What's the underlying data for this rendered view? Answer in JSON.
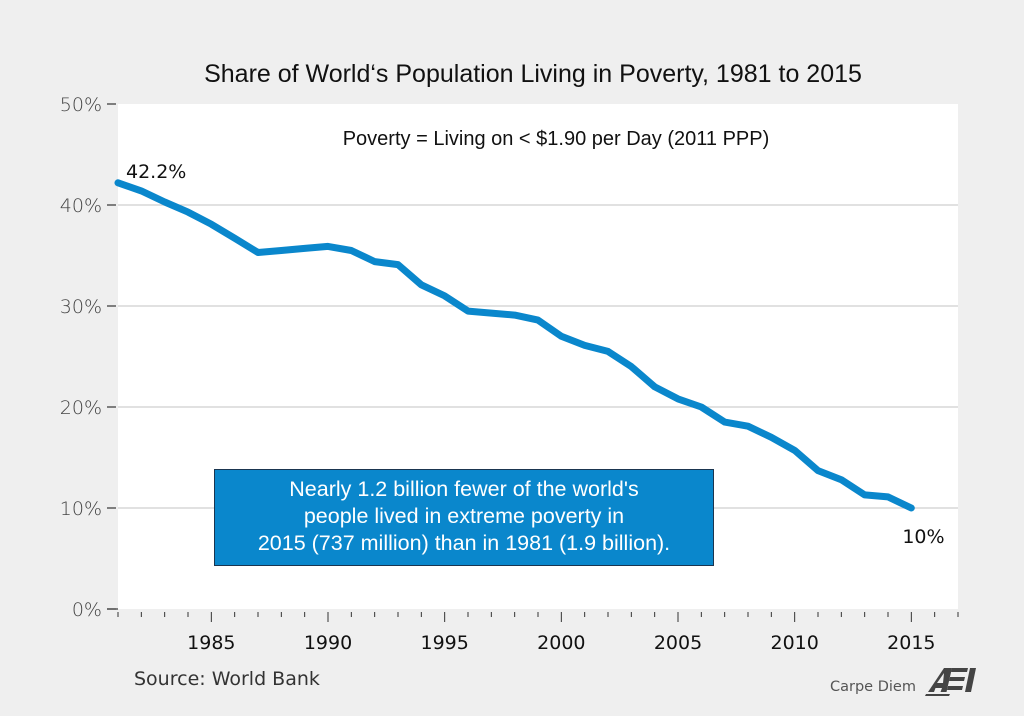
{
  "chart_data": {
    "type": "line",
    "title": "Share of World‘s Population Living in Poverty, 1981 to 2015",
    "subtitle": "Poverty = Living on < $1.90 per Day (2011 PPP)",
    "xlabel": "",
    "ylabel": "",
    "xlim": [
      1981,
      2017
    ],
    "ylim": [
      0,
      50
    ],
    "grid": "horizontal",
    "x_ticks": [
      1985,
      1990,
      1995,
      2000,
      2005,
      2010,
      2015
    ],
    "x_tick_labels": [
      "1985",
      "1990",
      "1995",
      "2000",
      "2005",
      "2010",
      "2015"
    ],
    "x_minor_tick_step": 1,
    "y_ticks": [
      0,
      10,
      20,
      30,
      40,
      50
    ],
    "y_tick_labels": [
      "0%",
      "10%",
      "20%",
      "30%",
      "40%",
      "50%"
    ],
    "series": [
      {
        "name": "Share of world population in poverty",
        "color": "#0a87cc",
        "x": [
          1981,
          1982,
          1983,
          1984,
          1985,
          1986,
          1987,
          1988,
          1989,
          1990,
          1991,
          1992,
          1993,
          1994,
          1995,
          1996,
          1997,
          1998,
          1999,
          2000,
          2001,
          2002,
          2003,
          2004,
          2005,
          2006,
          2007,
          2008,
          2009,
          2010,
          2011,
          2012,
          2013,
          2014,
          2015
        ],
        "values": [
          42.2,
          41.4,
          40.3,
          39.3,
          38.1,
          36.7,
          35.3,
          35.5,
          35.7,
          35.9,
          35.5,
          34.4,
          34.1,
          32.1,
          31.0,
          29.5,
          29.3,
          29.1,
          28.6,
          27.0,
          26.1,
          25.5,
          24.0,
          22.0,
          20.8,
          20.0,
          18.5,
          18.1,
          17.0,
          15.7,
          13.7,
          12.8,
          11.3,
          11.1,
          10.0
        ]
      }
    ],
    "data_labels": [
      {
        "x": 1981,
        "y": 42.2,
        "text": "42.2%"
      },
      {
        "x": 2015,
        "y": 10.0,
        "text": "10%"
      }
    ],
    "annotation": {
      "lines": [
        "Nearly 1.2 billion fewer of the world's",
        "people lived in extreme poverty in",
        "2015 (737 million) than in 1981 (1.9 billion)."
      ],
      "background": "#0a87cc",
      "text_color": "#ffffff"
    },
    "source": "Source: World Bank",
    "branding": {
      "text": "Carpe Diem",
      "logo": "AEI"
    }
  }
}
